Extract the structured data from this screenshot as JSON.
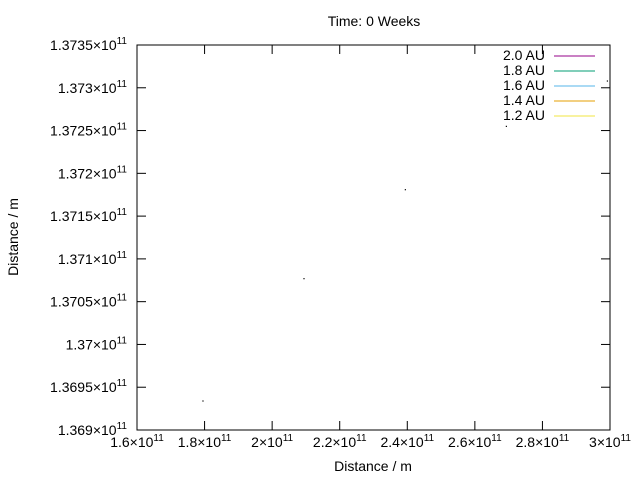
{
  "chart_data": {
    "type": "scatter",
    "title": "Time: 0 Weeks",
    "xlabel": "Distance / m",
    "ylabel": "Distance / m",
    "xlim": [
      160000000000.0,
      300000000000.0
    ],
    "ylim": [
      136900000000.0,
      137350000000.0
    ],
    "x_ticks": [
      {
        "value": 160000000000.0,
        "mantissa": "1.6",
        "exp": "11"
      },
      {
        "value": 180000000000.0,
        "mantissa": "1.8",
        "exp": "11"
      },
      {
        "value": 200000000000.0,
        "mantissa": "2",
        "exp": "11"
      },
      {
        "value": 220000000000.0,
        "mantissa": "2.2",
        "exp": "11"
      },
      {
        "value": 240000000000.0,
        "mantissa": "2.4",
        "exp": "11"
      },
      {
        "value": 260000000000.0,
        "mantissa": "2.6",
        "exp": "11"
      },
      {
        "value": 280000000000.0,
        "mantissa": "2.8",
        "exp": "11"
      },
      {
        "value": 300000000000.0,
        "mantissa": "3",
        "exp": "11"
      }
    ],
    "y_ticks": [
      {
        "value": 137350000000.0,
        "mantissa": "1.3735",
        "exp": "11"
      },
      {
        "value": 137300000000.0,
        "mantissa": "1.373",
        "exp": "11"
      },
      {
        "value": 137250000000.0,
        "mantissa": "1.3725",
        "exp": "11"
      },
      {
        "value": 137200000000.0,
        "mantissa": "1.372",
        "exp": "11"
      },
      {
        "value": 137150000000.0,
        "mantissa": "1.3715",
        "exp": "11"
      },
      {
        "value": 137100000000.0,
        "mantissa": "1.371",
        "exp": "11"
      },
      {
        "value": 137050000000.0,
        "mantissa": "1.3705",
        "exp": "11"
      },
      {
        "value": 137000000000.0,
        "mantissa": "1.37",
        "exp": "11"
      },
      {
        "value": 136950000000.0,
        "mantissa": "1.3695",
        "exp": "11"
      },
      {
        "value": 136900000000.0,
        "mantissa": "1.369",
        "exp": "11"
      }
    ],
    "times_symbol": "×10",
    "grid": false,
    "legend_position": "top-right",
    "series": [
      {
        "name": "2.0 AU",
        "color": "#94008a",
        "points": [
          [
            299200000000.0,
            137308000000.0
          ]
        ]
      },
      {
        "name": "1.8 AU",
        "color": "#009e73",
        "points": [
          [
            269300000000.0,
            137255000000.0
          ]
        ]
      },
      {
        "name": "1.6 AU",
        "color": "#56b4e9",
        "points": [
          [
            239400000000.0,
            137181000000.0
          ]
        ]
      },
      {
        "name": "1.4 AU",
        "color": "#e69f00",
        "points": [
          [
            209400000000.0,
            137077000000.0
          ]
        ]
      },
      {
        "name": "1.2 AU",
        "color": "#f0e442",
        "points": [
          [
            179500000000.0,
            136934000000.0
          ]
        ]
      }
    ]
  }
}
